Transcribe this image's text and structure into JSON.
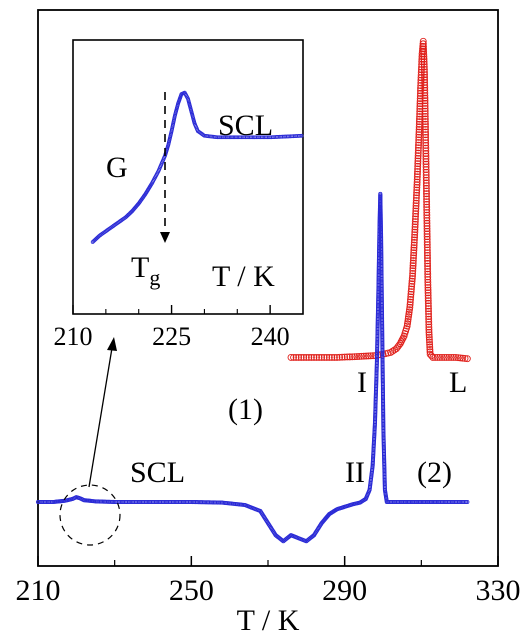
{
  "chart_data": {
    "type": "scatter",
    "title": "",
    "xlabel": "T / K",
    "ylabel": "",
    "xlim": [
      210,
      330
    ],
    "x_ticks": [
      "210",
      "250",
      "290",
      "330"
    ],
    "grid": false,
    "series": [
      {
        "name": "(1)",
        "color": "#e0201b",
        "marker": "open-circle",
        "points": [
          [
            276.0,
            1.0
          ],
          [
            280.0,
            1.0
          ],
          [
            284.0,
            1.0
          ],
          [
            288.0,
            1.0
          ],
          [
            292.0,
            1.01
          ],
          [
            295.0,
            1.02
          ],
          [
            298.0,
            1.03
          ],
          [
            300.0,
            1.05
          ],
          [
            302.0,
            1.08
          ],
          [
            303.5,
            1.14
          ],
          [
            304.5,
            1.22
          ],
          [
            305.5,
            1.34
          ],
          [
            306.3,
            1.5
          ],
          [
            307.0,
            1.8
          ],
          [
            307.7,
            2.3
          ],
          [
            308.3,
            3.0
          ],
          [
            308.9,
            3.8
          ],
          [
            309.4,
            4.6
          ],
          [
            309.8,
            5.3
          ],
          [
            310.2,
            5.85
          ],
          [
            310.5,
            6.05
          ],
          [
            310.8,
            5.6
          ],
          [
            311.1,
            4.6
          ],
          [
            311.4,
            3.4
          ],
          [
            311.7,
            2.2
          ],
          [
            312.0,
            1.4
          ],
          [
            312.3,
            1.05
          ],
          [
            313.0,
            1.0
          ],
          [
            316.0,
            1.0
          ],
          [
            319.0,
            1.0
          ],
          [
            322.0,
            0.98
          ]
        ]
      },
      {
        "name": "(2)",
        "color": "#2b2bd6",
        "marker": "small-open-circle",
        "points": [
          [
            210.0,
            0.0
          ],
          [
            214.0,
            0.0
          ],
          [
            217.0,
            0.02
          ],
          [
            219.0,
            0.05
          ],
          [
            220.0,
            0.08
          ],
          [
            221.0,
            0.06
          ],
          [
            222.0,
            0.03
          ],
          [
            225.0,
            0.01
          ],
          [
            230.0,
            0.0
          ],
          [
            240.0,
            0.0
          ],
          [
            250.0,
            0.0
          ],
          [
            258.0,
            -0.01
          ],
          [
            264.0,
            -0.05
          ],
          [
            268.0,
            -0.15
          ],
          [
            270.0,
            -0.35
          ],
          [
            272.0,
            -0.55
          ],
          [
            274.0,
            -0.65
          ],
          [
            276.0,
            -0.55
          ],
          [
            278.0,
            -0.6
          ],
          [
            280.0,
            -0.65
          ],
          [
            282.0,
            -0.55
          ],
          [
            284.0,
            -0.35
          ],
          [
            286.0,
            -0.2
          ],
          [
            288.0,
            -0.12
          ],
          [
            290.0,
            -0.08
          ],
          [
            292.0,
            -0.04
          ],
          [
            294.0,
            -0.01
          ],
          [
            295.5,
            0.05
          ],
          [
            296.5,
            0.2
          ],
          [
            297.3,
            0.6
          ],
          [
            297.9,
            1.3
          ],
          [
            298.4,
            2.3
          ],
          [
            298.8,
            3.5
          ],
          [
            299.1,
            4.6
          ],
          [
            299.3,
            5.1
          ],
          [
            299.5,
            4.4
          ],
          [
            299.8,
            2.8
          ],
          [
            300.1,
            1.2
          ],
          [
            300.5,
            0.2
          ],
          [
            301.0,
            0.0
          ],
          [
            305.0,
            0.0
          ],
          [
            310.0,
            0.0
          ],
          [
            315.0,
            0.0
          ],
          [
            322.0,
            0.0
          ]
        ]
      }
    ],
    "annotations": [
      "SCL",
      "II",
      "(2)",
      "I",
      "L",
      "(1)"
    ],
    "inset": {
      "type": "scatter",
      "xlim": [
        210,
        245
      ],
      "x_ticks": [
        "210",
        "225",
        "240"
      ],
      "xlabel": "T / K",
      "labels": {
        "glass": "G",
        "liquid": "SCL",
        "tg_main": "T",
        "tg_sub": "g"
      },
      "tg_x": 224,
      "series": [
        {
          "name": "",
          "color": "#2b2bd6",
          "points": [
            [
              213.0,
              0.0
            ],
            [
              214.0,
              0.04
            ],
            [
              215.0,
              0.07
            ],
            [
              216.0,
              0.1
            ],
            [
              217.0,
              0.13
            ],
            [
              218.0,
              0.16
            ],
            [
              219.0,
              0.2
            ],
            [
              220.0,
              0.25
            ],
            [
              221.0,
              0.31
            ],
            [
              222.0,
              0.38
            ],
            [
              223.0,
              0.46
            ],
            [
              224.0,
              0.56
            ],
            [
              224.5,
              0.63
            ],
            [
              225.0,
              0.72
            ],
            [
              225.5,
              0.82
            ],
            [
              226.0,
              0.9
            ],
            [
              226.5,
              0.96
            ],
            [
              227.0,
              0.97
            ],
            [
              227.5,
              0.93
            ],
            [
              228.0,
              0.85
            ],
            [
              228.5,
              0.77
            ],
            [
              229.0,
              0.72
            ],
            [
              230.0,
              0.69
            ],
            [
              232.0,
              0.68
            ],
            [
              235.0,
              0.68
            ],
            [
              240.0,
              0.68
            ],
            [
              245.0,
              0.69
            ]
          ]
        }
      ]
    }
  }
}
